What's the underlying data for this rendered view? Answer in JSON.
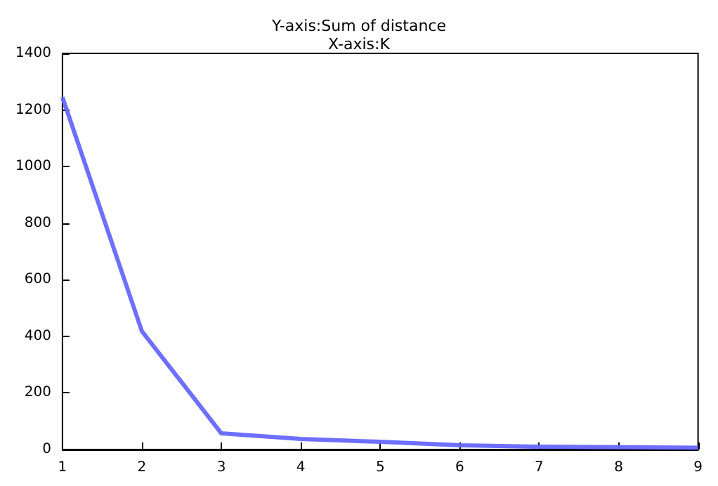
{
  "chart_data": {
    "type": "line",
    "title": "Y-axis:Sum of distance",
    "subtitle": "X-axis:K",
    "x": [
      1,
      2,
      3,
      4,
      5,
      6,
      7,
      8,
      9
    ],
    "series": [
      {
        "color": "#6666ff",
        "values": [
          1245,
          418,
          57,
          37,
          27,
          15,
          10,
          8,
          6
        ]
      }
    ],
    "xlim": [
      1,
      9
    ],
    "xticks": [
      1,
      2,
      3,
      4,
      5,
      6,
      7,
      8,
      9
    ],
    "ylim": [
      0,
      1400
    ],
    "yticks": [
      0,
      200,
      400,
      600,
      800,
      1000,
      1200,
      1400
    ],
    "grid": false,
    "marker": "none",
    "line_style": "solid"
  }
}
